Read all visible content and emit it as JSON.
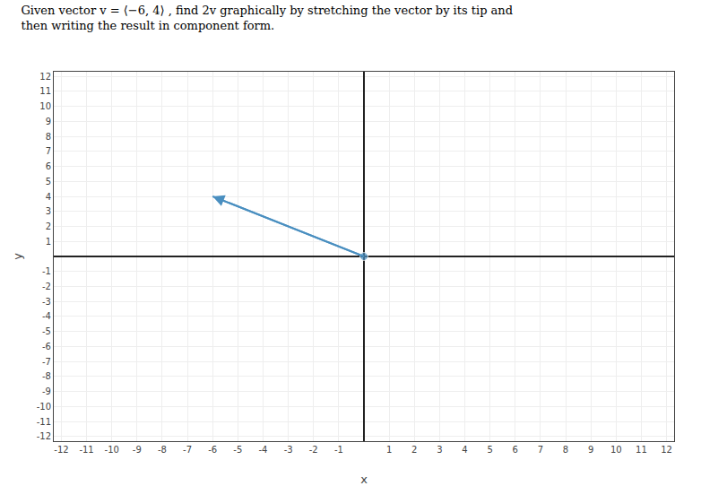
{
  "chart_data": {
    "type": "line",
    "title": "Given vector v = ⟨−6, 4⟩ , find 2v graphically by stretching the vector by its tip and\nthen writing the result in component form.",
    "x": [
      0,
      -6
    ],
    "values": [
      0,
      4
    ],
    "color": "#4a8fc0",
    "marker": "circle",
    "xlabel": "x",
    "ylabel": "y",
    "xlim": [
      -12.3,
      12.3
    ],
    "ylim": [
      -12.3,
      12.3
    ],
    "xticks": [
      -12,
      -11,
      -10,
      -9,
      -8,
      -7,
      -6,
      -5,
      -4,
      -3,
      -2,
      -1,
      1,
      2,
      3,
      4,
      5,
      6,
      7,
      8,
      9,
      10,
      11,
      12
    ],
    "yticks": [
      -12,
      -11,
      -10,
      -9,
      -8,
      -7,
      -6,
      -5,
      -4,
      -3,
      -2,
      -1,
      1,
      2,
      3,
      4,
      5,
      6,
      7,
      8,
      9,
      10,
      11,
      12
    ],
    "grid": true
  }
}
